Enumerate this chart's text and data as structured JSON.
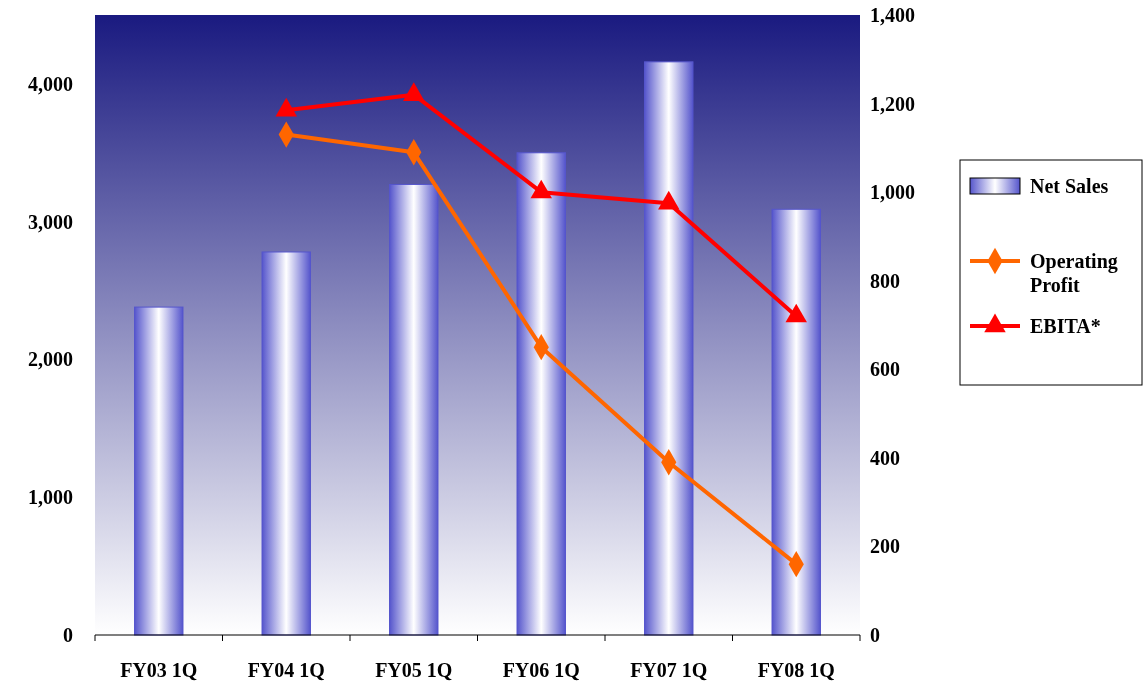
{
  "chart_data": {
    "type": "bar",
    "categories": [
      "FY03 1Q",
      "FY04 1Q",
      "FY05 1Q",
      "FY06 1Q",
      "FY07 1Q",
      "FY08 1Q"
    ],
    "series": [
      {
        "name": "Net Sales",
        "color": "#5555cc",
        "values": [
          2380,
          2780,
          3270,
          3500,
          4160,
          3090
        ]
      },
      {
        "name": "Operating Profit",
        "type": "line",
        "axis": "y2",
        "marker": "diamond",
        "color": "#ff6600",
        "values": [
          null,
          1130,
          1090,
          650,
          390,
          160
        ]
      },
      {
        "name": "EBITA*",
        "type": "line",
        "axis": "y2",
        "marker": "triangle",
        "color": "#ff0000",
        "values": [
          null,
          1185,
          1220,
          1000,
          975,
          720
        ]
      }
    ],
    "ylim": [
      0,
      4500
    ],
    "yticks": [
      {
        "value": 0,
        "label": "0"
      },
      {
        "value": 1000,
        "label": "1,000"
      },
      {
        "value": 2000,
        "label": "2,000"
      },
      {
        "value": 3000,
        "label": "3,000"
      },
      {
        "value": 4000,
        "label": "4,000"
      }
    ],
    "y2lim": [
      0,
      1400
    ],
    "y2ticks": [
      0,
      200,
      400,
      600,
      800,
      {
        "value": 1000,
        "label": "1,000"
      },
      {
        "value": 1200,
        "label": "1,200"
      },
      {
        "value": 1400,
        "label": "1,400"
      }
    ],
    "legend": "right",
    "grid": false
  }
}
